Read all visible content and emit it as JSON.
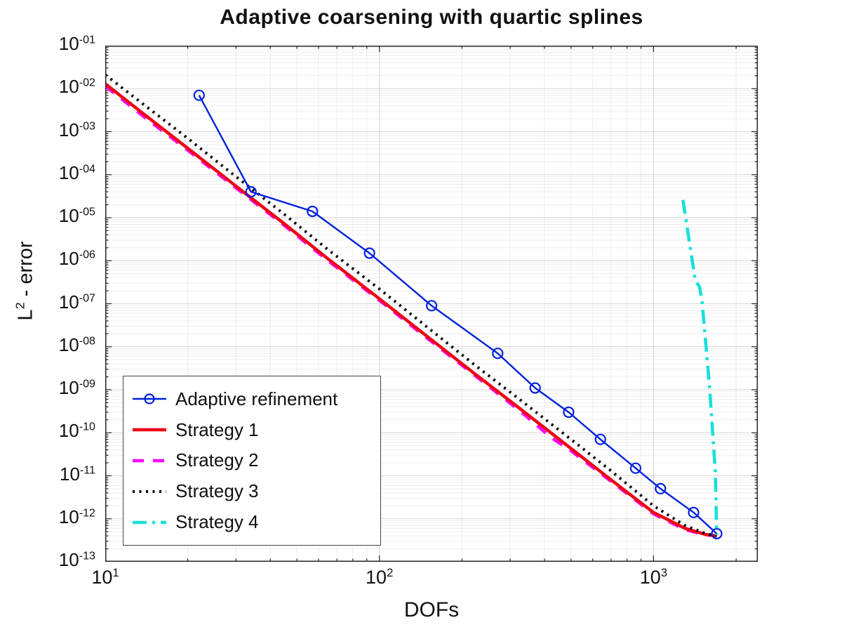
{
  "figure": {
    "ylabel_base": "L",
    "ylabel_exp": "2",
    "ylabel_rest": " - error"
  },
  "chart_data": {
    "type": "line",
    "title": "Adaptive coarsening with quartic splines",
    "xlabel": "DOFs",
    "ylabel": "L^2 - error",
    "xscale": "log",
    "yscale": "log",
    "xlim": [
      10,
      2400
    ],
    "ylim": [
      1e-13,
      0.1
    ],
    "grid": true,
    "minor_grid": true,
    "log_base_label": "10",
    "x_tick_exponents": [
      1,
      2,
      3
    ],
    "y_tick_exponents": [
      -1,
      -2,
      -3,
      -4,
      -5,
      -6,
      -7,
      -8,
      -9,
      -10,
      -11,
      -12,
      -13
    ],
    "legend_position": "lower-left",
    "draw_order": [
      2,
      1,
      3,
      0,
      4
    ],
    "series": [
      {
        "name": "Adaptive refinement",
        "color": "#0022DD",
        "style": "solid",
        "marker": "circle",
        "line_width": 2.4,
        "points": [
          [
            22,
            0.007
          ],
          [
            34,
            4e-05
          ],
          [
            57,
            1.4e-05
          ],
          [
            92,
            1.5e-06
          ],
          [
            155,
            9e-08
          ],
          [
            270,
            7e-09
          ],
          [
            370,
            1.1e-09
          ],
          [
            490,
            3e-10
          ],
          [
            640,
            7e-11
          ],
          [
            860,
            1.5e-11
          ],
          [
            1060,
            5e-12
          ],
          [
            1400,
            1.4e-12
          ],
          [
            1700,
            4.5e-13
          ]
        ]
      },
      {
        "name": "Strategy 1",
        "color": "#EE0016",
        "style": "solid",
        "marker": null,
        "line_width": 4.5,
        "points": [
          [
            10,
            0.013
          ],
          [
            14,
            0.0024
          ],
          [
            20,
            0.00041
          ],
          [
            30,
            5.4e-05
          ],
          [
            45,
            7.2e-06
          ],
          [
            65,
            1.1e-06
          ],
          [
            100,
            1.3e-07
          ],
          [
            150,
            1.7e-08
          ],
          [
            220,
            2.5e-09
          ],
          [
            330,
            3.4e-10
          ],
          [
            500,
            4.3e-11
          ],
          [
            700,
            8e-12
          ],
          [
            1000,
            1.4e-12
          ],
          [
            1300,
            6e-13
          ],
          [
            1550,
            4.3e-13
          ],
          [
            1700,
            4e-13
          ]
        ]
      },
      {
        "name": "Strategy 2",
        "color": "#FF00FF",
        "style": "dashed",
        "marker": null,
        "line_width": 4.5,
        "points": [
          [
            10,
            0.0115
          ],
          [
            14,
            0.0021
          ],
          [
            20,
            0.00037
          ],
          [
            30,
            4.9e-05
          ],
          [
            45,
            6.6e-06
          ],
          [
            65,
            1e-06
          ],
          [
            100,
            1.2e-07
          ],
          [
            150,
            1.55e-08
          ],
          [
            220,
            2.3e-09
          ],
          [
            330,
            3e-10
          ],
          [
            420,
            8e-11
          ],
          [
            500,
            3.8e-11
          ],
          [
            700,
            7.4e-12
          ],
          [
            1000,
            1.3e-12
          ],
          [
            1300,
            5.6e-13
          ],
          [
            1550,
            4.2e-13
          ],
          [
            1700,
            4e-13
          ]
        ]
      },
      {
        "name": "Strategy 3",
        "color": "#0a0a0a",
        "style": "dotted",
        "marker": null,
        "line_width": 4,
        "points": [
          [
            10,
            0.021
          ],
          [
            14,
            0.004
          ],
          [
            20,
            0.0007
          ],
          [
            30,
            9e-05
          ],
          [
            45,
            1.2e-05
          ],
          [
            65,
            1.8e-06
          ],
          [
            100,
            2.2e-07
          ],
          [
            150,
            2.8e-08
          ],
          [
            220,
            4e-09
          ],
          [
            330,
            5.5e-10
          ],
          [
            500,
            7e-11
          ],
          [
            700,
            1.3e-11
          ],
          [
            1000,
            2e-12
          ],
          [
            1300,
            7e-13
          ],
          [
            1550,
            4.5e-13
          ],
          [
            1700,
            4e-13
          ]
        ]
      },
      {
        "name": "Strategy 4",
        "color": "#15E0DA",
        "style": "dashdot",
        "marker": null,
        "line_width": 4.5,
        "points": [
          [
            1280,
            2.6e-05
          ],
          [
            1420,
            3.5e-07
          ],
          [
            1470,
            2.5e-07
          ],
          [
            1500,
            1.3e-07
          ],
          [
            1600,
            1.2e-09
          ],
          [
            1680,
            1.2e-11
          ],
          [
            1700,
            4.2e-13
          ]
        ]
      }
    ]
  }
}
